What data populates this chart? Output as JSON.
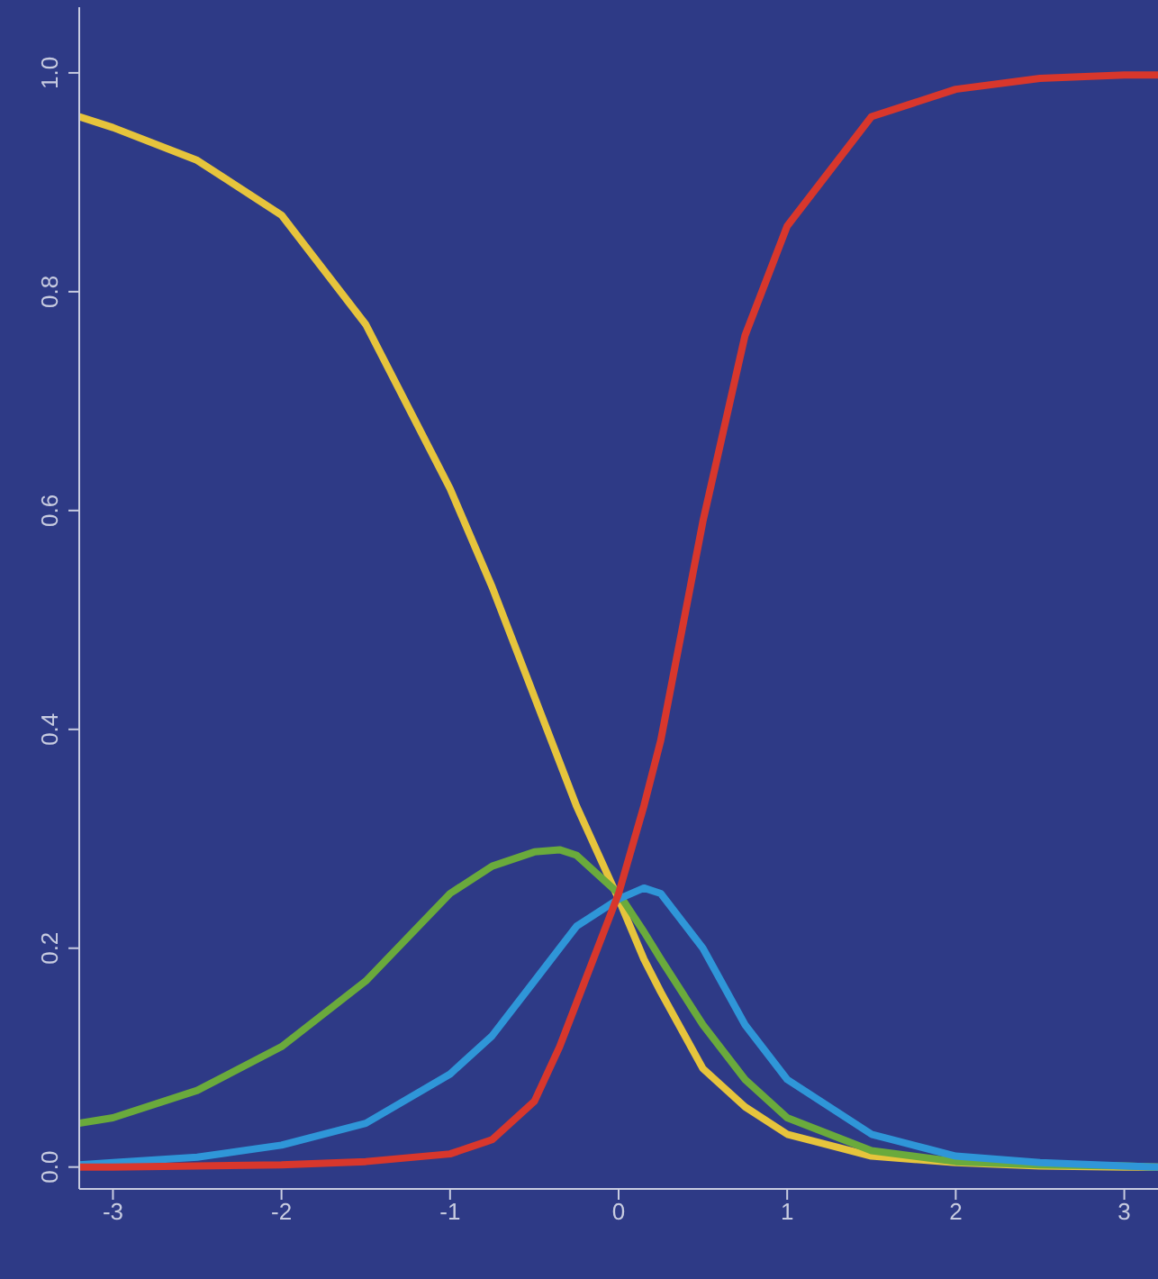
{
  "chart_data": {
    "type": "line",
    "x": [
      -3.2,
      -3,
      -2.5,
      -2,
      -1.5,
      -1,
      -0.75,
      -0.5,
      -0.35,
      -0.25,
      0,
      0.15,
      0.25,
      0.5,
      0.75,
      1,
      1.5,
      2,
      2.5,
      3,
      3.2
    ],
    "series": [
      {
        "color": "#e6c43c",
        "values": [
          0.96,
          0.95,
          0.92,
          0.87,
          0.77,
          0.62,
          0.53,
          0.43,
          0.37,
          0.33,
          0.245,
          0.19,
          0.16,
          0.09,
          0.055,
          0.03,
          0.01,
          0.004,
          0.001,
          0,
          0
        ]
      },
      {
        "color": "#6aaa3c",
        "values": [
          0.04,
          0.045,
          0.07,
          0.11,
          0.17,
          0.25,
          0.275,
          0.288,
          0.29,
          0.285,
          0.25,
          0.215,
          0.19,
          0.13,
          0.08,
          0.045,
          0.015,
          0.005,
          0.002,
          0.001,
          0
        ]
      },
      {
        "color": "#2f96d8",
        "values": [
          0.002,
          0.004,
          0.009,
          0.02,
          0.04,
          0.085,
          0.12,
          0.17,
          0.2,
          0.22,
          0.245,
          0.255,
          0.25,
          0.2,
          0.13,
          0.08,
          0.03,
          0.01,
          0.004,
          0.001,
          0
        ]
      },
      {
        "color": "#d8372c",
        "values": [
          0,
          0,
          0.001,
          0.002,
          0.005,
          0.012,
          0.025,
          0.06,
          0.11,
          0.15,
          0.25,
          0.33,
          0.39,
          0.59,
          0.76,
          0.86,
          0.96,
          0.985,
          0.995,
          0.998,
          0.998
        ]
      }
    ],
    "xlim": [
      -3.2,
      3.2
    ],
    "xticks": [
      -3,
      -2,
      -1,
      0,
      1,
      2,
      3
    ],
    "ylim": [
      -0.02,
      1.06
    ],
    "yticks": [
      {
        "value": 0,
        "label": "0.0"
      },
      {
        "value": 0.2,
        "label": "0.2"
      },
      {
        "value": 0.4,
        "label": "0.4"
      },
      {
        "value": 0.6,
        "label": "0.6"
      },
      {
        "value": 0.8,
        "label": "0.8"
      },
      {
        "value": 1,
        "label": "1.0"
      }
    ],
    "grid": false,
    "legend": false,
    "marker": "none",
    "line_style": "solid"
  }
}
